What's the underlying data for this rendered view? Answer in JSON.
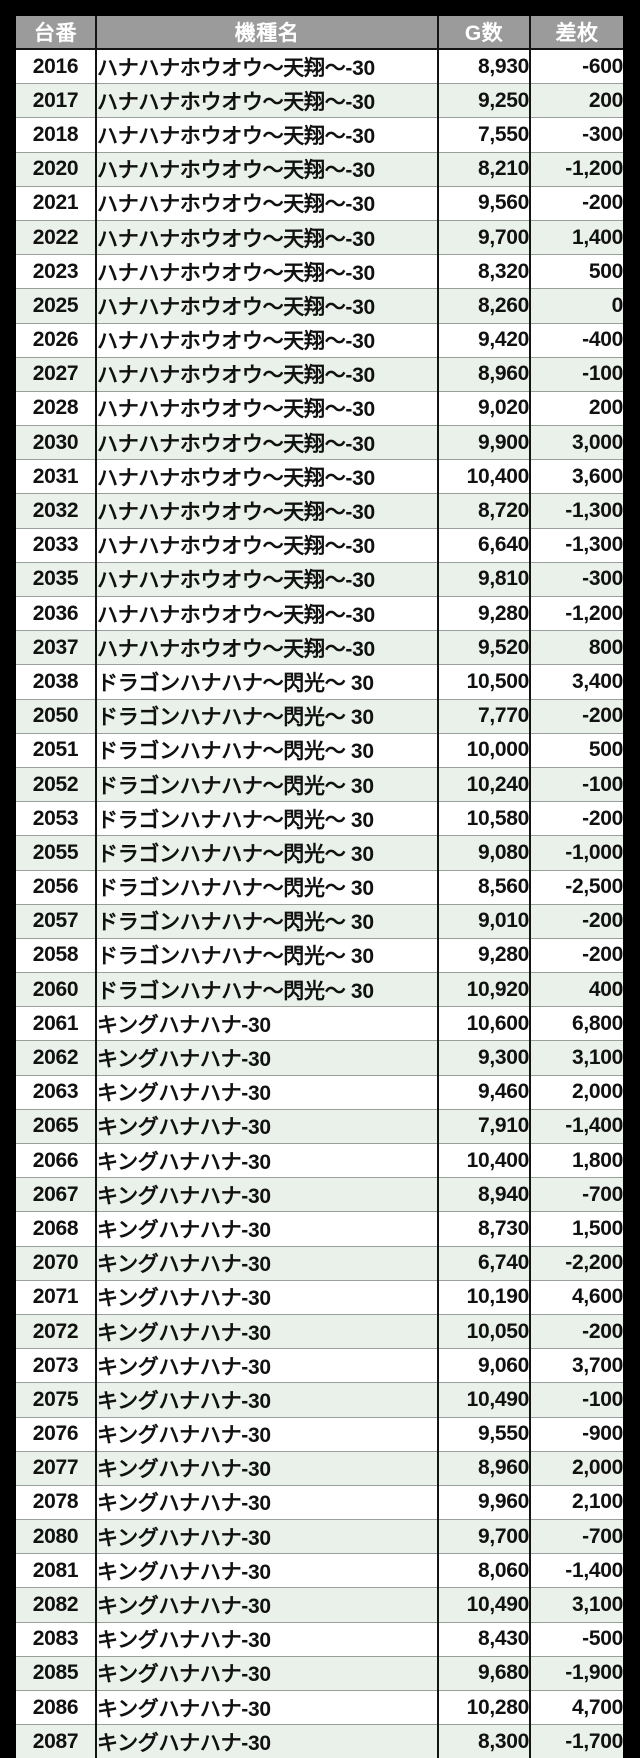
{
  "colors": {
    "background": "#000000",
    "header_bg": "#9b9b9b",
    "header_text": "#ffffff",
    "row_white": "#ffffff",
    "row_green": "#e9f1ea",
    "cell_text": "#111111",
    "grid_dark": "#141414",
    "grid_light": "#99a09b"
  },
  "chart_data": {
    "type": "table",
    "columns": [
      {
        "key": "dai-ban",
        "label": "台番",
        "align": "center"
      },
      {
        "key": "kishu-mei",
        "label": "機種名",
        "align": "left"
      },
      {
        "key": "g-su",
        "label": "G数",
        "align": "right"
      },
      {
        "key": "sa-mai",
        "label": "差枚",
        "align": "right"
      }
    ],
    "rows": [
      [
        "2016",
        "ハナハナホウオウ～天翔～-30",
        "8,930",
        "-600"
      ],
      [
        "2017",
        "ハナハナホウオウ～天翔～-30",
        "9,250",
        "200"
      ],
      [
        "2018",
        "ハナハナホウオウ～天翔～-30",
        "7,550",
        "-300"
      ],
      [
        "2020",
        "ハナハナホウオウ～天翔～-30",
        "8,210",
        "-1,200"
      ],
      [
        "2021",
        "ハナハナホウオウ～天翔～-30",
        "9,560",
        "-200"
      ],
      [
        "2022",
        "ハナハナホウオウ～天翔～-30",
        "9,700",
        "1,400"
      ],
      [
        "2023",
        "ハナハナホウオウ～天翔～-30",
        "8,320",
        "500"
      ],
      [
        "2025",
        "ハナハナホウオウ～天翔～-30",
        "8,260",
        "0"
      ],
      [
        "2026",
        "ハナハナホウオウ～天翔～-30",
        "9,420",
        "-400"
      ],
      [
        "2027",
        "ハナハナホウオウ～天翔～-30",
        "8,960",
        "-100"
      ],
      [
        "2028",
        "ハナハナホウオウ～天翔～-30",
        "9,020",
        "200"
      ],
      [
        "2030",
        "ハナハナホウオウ～天翔～-30",
        "9,900",
        "3,000"
      ],
      [
        "2031",
        "ハナハナホウオウ～天翔～-30",
        "10,400",
        "3,600"
      ],
      [
        "2032",
        "ハナハナホウオウ～天翔～-30",
        "8,720",
        "-1,300"
      ],
      [
        "2033",
        "ハナハナホウオウ～天翔～-30",
        "6,640",
        "-1,300"
      ],
      [
        "2035",
        "ハナハナホウオウ～天翔～-30",
        "9,810",
        "-300"
      ],
      [
        "2036",
        "ハナハナホウオウ～天翔～-30",
        "9,280",
        "-1,200"
      ],
      [
        "2037",
        "ハナハナホウオウ～天翔～-30",
        "9,520",
        "800"
      ],
      [
        "2038",
        "ドラゴンハナハナ～閃光～ 30",
        "10,500",
        "3,400"
      ],
      [
        "2050",
        "ドラゴンハナハナ～閃光～ 30",
        "7,770",
        "-200"
      ],
      [
        "2051",
        "ドラゴンハナハナ～閃光～ 30",
        "10,000",
        "500"
      ],
      [
        "2052",
        "ドラゴンハナハナ～閃光～ 30",
        "10,240",
        "-100"
      ],
      [
        "2053",
        "ドラゴンハナハナ～閃光～ 30",
        "10,580",
        "-200"
      ],
      [
        "2055",
        "ドラゴンハナハナ～閃光～ 30",
        "9,080",
        "-1,000"
      ],
      [
        "2056",
        "ドラゴンハナハナ～閃光～ 30",
        "8,560",
        "-2,500"
      ],
      [
        "2057",
        "ドラゴンハナハナ～閃光～ 30",
        "9,010",
        "-200"
      ],
      [
        "2058",
        "ドラゴンハナハナ～閃光～ 30",
        "9,280",
        "-200"
      ],
      [
        "2060",
        "ドラゴンハナハナ～閃光～ 30",
        "10,920",
        "400"
      ],
      [
        "2061",
        "キングハナハナ-30",
        "10,600",
        "6,800"
      ],
      [
        "2062",
        "キングハナハナ-30",
        "9,300",
        "3,100"
      ],
      [
        "2063",
        "キングハナハナ-30",
        "9,460",
        "2,000"
      ],
      [
        "2065",
        "キングハナハナ-30",
        "7,910",
        "-1,400"
      ],
      [
        "2066",
        "キングハナハナ-30",
        "10,400",
        "1,800"
      ],
      [
        "2067",
        "キングハナハナ-30",
        "8,940",
        "-700"
      ],
      [
        "2068",
        "キングハナハナ-30",
        "8,730",
        "1,500"
      ],
      [
        "2070",
        "キングハナハナ-30",
        "6,740",
        "-2,200"
      ],
      [
        "2071",
        "キングハナハナ-30",
        "10,190",
        "4,600"
      ],
      [
        "2072",
        "キングハナハナ-30",
        "10,050",
        "-200"
      ],
      [
        "2073",
        "キングハナハナ-30",
        "9,060",
        "3,700"
      ],
      [
        "2075",
        "キングハナハナ-30",
        "10,490",
        "-100"
      ],
      [
        "2076",
        "キングハナハナ-30",
        "9,550",
        "-900"
      ],
      [
        "2077",
        "キングハナハナ-30",
        "8,960",
        "2,000"
      ],
      [
        "2078",
        "キングハナハナ-30",
        "9,960",
        "2,100"
      ],
      [
        "2080",
        "キングハナハナ-30",
        "9,700",
        "-700"
      ],
      [
        "2081",
        "キングハナハナ-30",
        "8,060",
        "-1,400"
      ],
      [
        "2082",
        "キングハナハナ-30",
        "10,490",
        "3,100"
      ],
      [
        "2083",
        "キングハナハナ-30",
        "8,430",
        "-500"
      ],
      [
        "2085",
        "キングハナハナ-30",
        "9,680",
        "-1,900"
      ],
      [
        "2086",
        "キングハナハナ-30",
        "10,280",
        "4,700"
      ],
      [
        "2087",
        "キングハナハナ-30",
        "8,300",
        "-1,700"
      ]
    ]
  }
}
